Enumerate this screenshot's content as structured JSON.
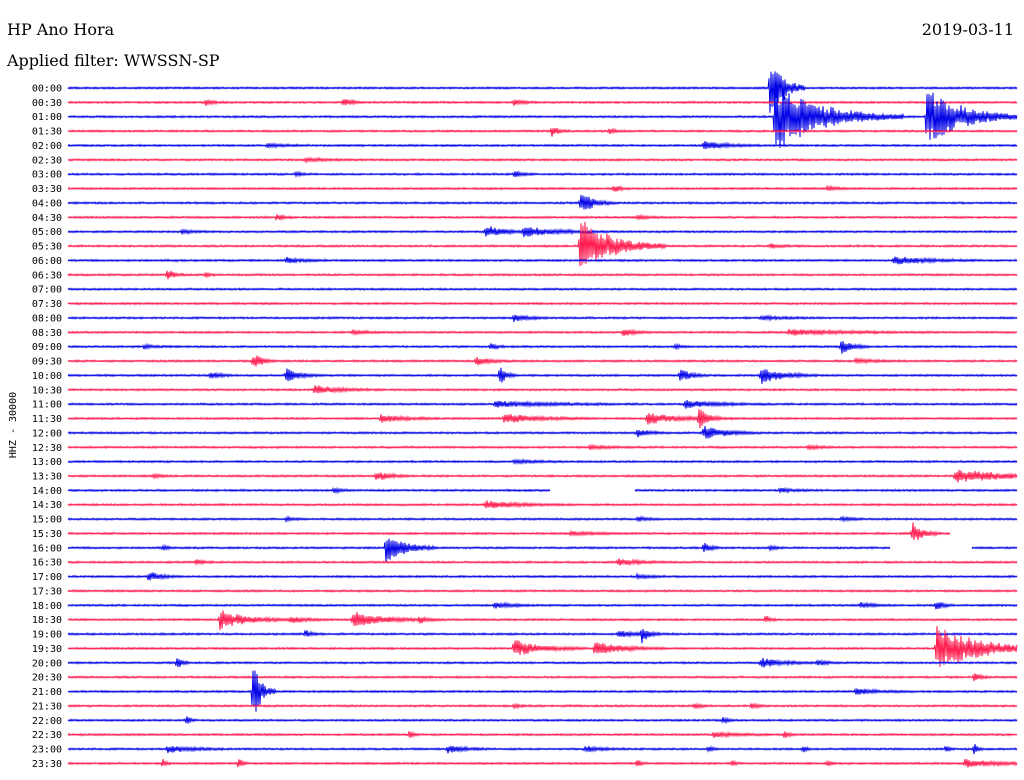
{
  "header": {
    "station": "HP Ano Hora",
    "date": "2019-03-11",
    "filter": "Applied filter: WWSSN-SP"
  },
  "chart_data": {
    "type": "line",
    "title": "HP Ano Hora",
    "ylabel": "HHZ - 30000",
    "colors": {
      "even": "#0000e6",
      "odd": "#ff1a4d"
    },
    "rows": [
      {
        "label": "00:00",
        "events": [
          [
            0.74,
            40,
            0.012
          ]
        ],
        "gaps": []
      },
      {
        "label": "00:30",
        "events": [
          [
            0.145,
            3,
            0.008
          ],
          [
            0.29,
            4,
            0.008
          ],
          [
            0.47,
            3,
            0.01
          ]
        ],
        "gaps": []
      },
      {
        "label": "01:00",
        "events": [
          [
            0.745,
            35,
            0.045
          ],
          [
            0.905,
            30,
            0.035
          ]
        ],
        "gaps": []
      },
      {
        "label": "01:30",
        "events": [
          [
            0.51,
            6,
            0.006
          ],
          [
            0.57,
            3,
            0.006
          ]
        ],
        "gaps": []
      },
      {
        "label": "02:00",
        "events": [
          [
            0.21,
            2,
            0.015
          ],
          [
            0.67,
            4,
            0.02
          ]
        ],
        "gaps": []
      },
      {
        "label": "02:30",
        "events": [
          [
            0.25,
            2,
            0.02
          ]
        ],
        "gaps": []
      },
      {
        "label": "03:00",
        "events": [
          [
            0.24,
            2,
            0.006
          ],
          [
            0.47,
            3,
            0.008
          ]
        ],
        "gaps": []
      },
      {
        "label": "03:30",
        "events": [
          [
            0.575,
            4,
            0.006
          ],
          [
            0.8,
            2,
            0.01
          ]
        ],
        "gaps": []
      },
      {
        "label": "04:00",
        "events": [
          [
            0.54,
            12,
            0.012
          ]
        ],
        "gaps": []
      },
      {
        "label": "04:30",
        "events": [
          [
            0.22,
            4,
            0.006
          ],
          [
            0.6,
            2,
            0.01
          ]
        ],
        "gaps": []
      },
      {
        "label": "05:00",
        "events": [
          [
            0.12,
            2,
            0.01
          ],
          [
            0.44,
            7,
            0.015
          ],
          [
            0.48,
            5,
            0.03
          ]
        ],
        "gaps": []
      },
      {
        "label": "05:30",
        "events": [
          [
            0.54,
            30,
            0.03
          ],
          [
            0.74,
            2,
            0.01
          ]
        ],
        "gaps": []
      },
      {
        "label": "06:00",
        "events": [
          [
            0.23,
            3,
            0.015
          ],
          [
            0.87,
            4,
            0.03
          ]
        ],
        "gaps": []
      },
      {
        "label": "06:30",
        "events": [
          [
            0.105,
            6,
            0.006
          ],
          [
            0.145,
            3,
            0.004
          ]
        ],
        "gaps": []
      },
      {
        "label": "07:00",
        "events": [],
        "gaps": []
      },
      {
        "label": "07:30",
        "events": [],
        "gaps": []
      },
      {
        "label": "08:00",
        "events": [
          [
            0.47,
            4,
            0.012
          ],
          [
            0.73,
            2,
            0.02
          ]
        ],
        "gaps": []
      },
      {
        "label": "08:30",
        "events": [
          [
            0.3,
            2,
            0.012
          ],
          [
            0.585,
            4,
            0.01
          ],
          [
            0.76,
            3,
            0.05
          ]
        ],
        "gaps": []
      },
      {
        "label": "09:00",
        "events": [
          [
            0.08,
            2,
            0.01
          ],
          [
            0.445,
            3,
            0.006
          ],
          [
            0.64,
            2,
            0.005
          ],
          [
            0.815,
            8,
            0.01
          ]
        ],
        "gaps": []
      },
      {
        "label": "09:30",
        "events": [
          [
            0.195,
            9,
            0.008
          ],
          [
            0.43,
            5,
            0.012
          ],
          [
            0.83,
            2,
            0.02
          ]
        ],
        "gaps": []
      },
      {
        "label": "10:00",
        "events": [
          [
            0.15,
            3,
            0.01
          ],
          [
            0.23,
            7,
            0.012
          ],
          [
            0.455,
            10,
            0.006
          ],
          [
            0.645,
            7,
            0.01
          ],
          [
            0.73,
            9,
            0.02
          ]
        ],
        "gaps": []
      },
      {
        "label": "10:30",
        "events": [
          [
            0.26,
            4,
            0.025
          ]
        ],
        "gaps": []
      },
      {
        "label": "11:00",
        "events": [
          [
            0.45,
            3,
            0.05
          ],
          [
            0.65,
            4,
            0.03
          ]
        ],
        "gaps": []
      },
      {
        "label": "11:30",
        "events": [
          [
            0.33,
            4,
            0.02
          ],
          [
            0.46,
            5,
            0.03
          ],
          [
            0.61,
            6,
            0.03
          ],
          [
            0.665,
            10,
            0.008
          ]
        ],
        "gaps": []
      },
      {
        "label": "12:00",
        "events": [
          [
            0.6,
            4,
            0.012
          ],
          [
            0.67,
            7,
            0.02
          ]
        ],
        "gaps": []
      },
      {
        "label": "12:30",
        "events": [
          [
            0.55,
            2,
            0.015
          ],
          [
            0.78,
            2,
            0.01
          ]
        ],
        "gaps": []
      },
      {
        "label": "13:00",
        "events": [
          [
            0.47,
            2,
            0.02
          ]
        ],
        "gaps": []
      },
      {
        "label": "13:30",
        "events": [
          [
            0.09,
            2,
            0.006
          ],
          [
            0.325,
            5,
            0.012
          ],
          [
            0.935,
            7,
            0.045
          ]
        ],
        "gaps": []
      },
      {
        "label": "14:00",
        "events": [
          [
            0.28,
            3,
            0.006
          ],
          [
            0.75,
            2,
            0.015
          ]
        ],
        "gaps": [
          [
            0.508,
            0.597
          ]
        ]
      },
      {
        "label": "14:30",
        "events": [
          [
            0.44,
            4,
            0.03
          ]
        ],
        "gaps": []
      },
      {
        "label": "15:00",
        "events": [
          [
            0.23,
            2,
            0.008
          ],
          [
            0.6,
            2,
            0.01
          ],
          [
            0.815,
            2,
            0.01
          ]
        ],
        "gaps": []
      },
      {
        "label": "15:30",
        "events": [
          [
            0.89,
            11,
            0.01
          ],
          [
            0.53,
            2,
            0.02
          ]
        ],
        "gaps": [
          [
            0.93,
            1.0
          ]
        ]
      },
      {
        "label": "16:00",
        "events": [
          [
            0.335,
            16,
            0.018
          ],
          [
            0.67,
            6,
            0.006
          ],
          [
            0.1,
            3,
            0.004
          ],
          [
            0.74,
            2,
            0.006
          ]
        ],
        "gaps": [
          [
            0.867,
            0.952
          ]
        ]
      },
      {
        "label": "16:30",
        "events": [
          [
            0.135,
            3,
            0.006
          ],
          [
            0.58,
            3,
            0.02
          ]
        ],
        "gaps": []
      },
      {
        "label": "17:00",
        "events": [
          [
            0.085,
            5,
            0.012
          ],
          [
            0.6,
            2,
            0.012
          ]
        ],
        "gaps": []
      },
      {
        "label": "17:30",
        "events": [],
        "gaps": []
      },
      {
        "label": "18:00",
        "events": [
          [
            0.45,
            3,
            0.015
          ],
          [
            0.835,
            3,
            0.012
          ],
          [
            0.915,
            6,
            0.006
          ]
        ],
        "gaps": []
      },
      {
        "label": "18:30",
        "events": [
          [
            0.16,
            10,
            0.025
          ],
          [
            0.3,
            9,
            0.025
          ],
          [
            0.37,
            3,
            0.01
          ],
          [
            0.235,
            3,
            0.015
          ],
          [
            0.735,
            4,
            0.004
          ]
        ],
        "gaps": []
      },
      {
        "label": "19:00",
        "events": [
          [
            0.25,
            4,
            0.006
          ],
          [
            0.605,
            8,
            0.006
          ],
          [
            0.58,
            3,
            0.02
          ]
        ],
        "gaps": []
      },
      {
        "label": "19:30",
        "events": [
          [
            0.47,
            9,
            0.025
          ],
          [
            0.555,
            7,
            0.025
          ],
          [
            0.915,
            25,
            0.04
          ]
        ],
        "gaps": []
      },
      {
        "label": "20:00",
        "events": [
          [
            0.115,
            8,
            0.004
          ],
          [
            0.73,
            5,
            0.02
          ],
          [
            0.79,
            3,
            0.008
          ]
        ],
        "gaps": []
      },
      {
        "label": "20:30",
        "events": [
          [
            0.955,
            4,
            0.006
          ]
        ],
        "gaps": []
      },
      {
        "label": "21:00",
        "events": [
          [
            0.195,
            30,
            0.008
          ],
          [
            0.83,
            3,
            0.02
          ]
        ],
        "gaps": []
      },
      {
        "label": "21:30",
        "events": [
          [
            0.66,
            3,
            0.006
          ],
          [
            0.72,
            3,
            0.006
          ],
          [
            0.47,
            2,
            0.006
          ]
        ],
        "gaps": []
      },
      {
        "label": "22:00",
        "events": [
          [
            0.125,
            6,
            0.003
          ],
          [
            0.69,
            3,
            0.006
          ]
        ],
        "gaps": []
      },
      {
        "label": "22:30",
        "events": [
          [
            0.36,
            4,
            0.004
          ],
          [
            0.755,
            4,
            0.004
          ],
          [
            0.68,
            3,
            0.02
          ]
        ],
        "gaps": []
      },
      {
        "label": "23:00",
        "events": [
          [
            0.105,
            4,
            0.02
          ],
          [
            0.4,
            4,
            0.015
          ],
          [
            0.545,
            3,
            0.015
          ],
          [
            0.675,
            4,
            0.003
          ],
          [
            0.775,
            4,
            0.003
          ],
          [
            0.925,
            4,
            0.003
          ],
          [
            0.955,
            6,
            0.003
          ]
        ],
        "gaps": []
      },
      {
        "label": "23:30",
        "events": [
          [
            0.1,
            4,
            0.003
          ],
          [
            0.18,
            6,
            0.003
          ],
          [
            0.6,
            4,
            0.003
          ],
          [
            0.7,
            4,
            0.003
          ],
          [
            0.8,
            3,
            0.003
          ],
          [
            0.945,
            4,
            0.03
          ]
        ],
        "gaps": []
      }
    ]
  }
}
